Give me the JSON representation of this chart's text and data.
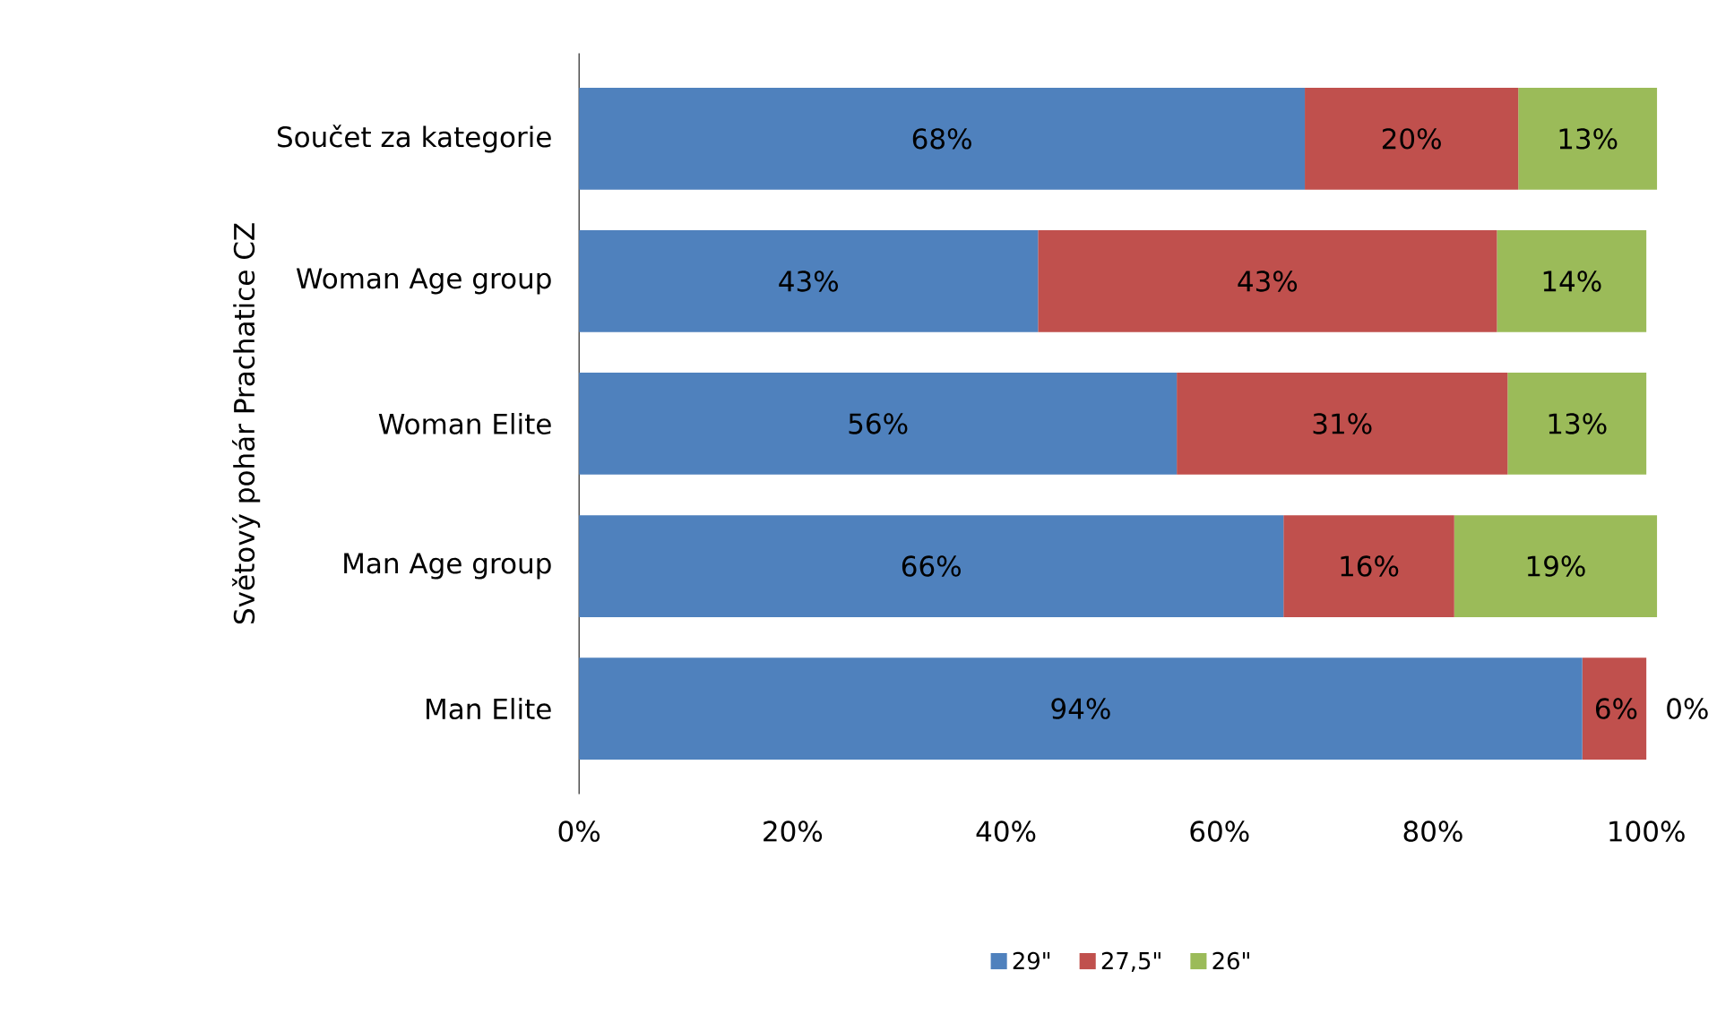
{
  "chart_data": {
    "type": "bar",
    "orientation": "horizontal",
    "stacked": true,
    "ylabel": "Světový pohár Prachatice CZ",
    "categories": [
      "Součet za kategorie",
      "Woman Age group",
      "Woman Elite",
      "Man Age group",
      "Man Elite"
    ],
    "series": [
      {
        "name": "29\"",
        "color": "#4f81bd",
        "values": [
          68,
          43,
          56,
          66,
          94
        ],
        "value_labels": [
          "68%",
          "43%",
          "56%",
          "66%",
          "94%"
        ]
      },
      {
        "name": "27,5\"",
        "color": "#c0504d",
        "values": [
          20,
          43,
          31,
          16,
          6
        ],
        "value_labels": [
          "20%",
          "43%",
          "31%",
          "16%",
          "6%"
        ]
      },
      {
        "name": "26\"",
        "color": "#9bbb59",
        "values": [
          13,
          14,
          13,
          19,
          0
        ],
        "value_labels": [
          "13%",
          "14%",
          "13%",
          "19%",
          "0%"
        ]
      }
    ],
    "xlim": [
      0,
      102
    ],
    "xticks": [
      {
        "value": 0,
        "label": "0%"
      },
      {
        "value": 20,
        "label": "20%"
      },
      {
        "value": 40,
        "label": "40%"
      },
      {
        "value": 60,
        "label": "60%"
      },
      {
        "value": 80,
        "label": "80%"
      },
      {
        "value": 100,
        "label": "100%"
      }
    ],
    "legend": "bottom"
  }
}
